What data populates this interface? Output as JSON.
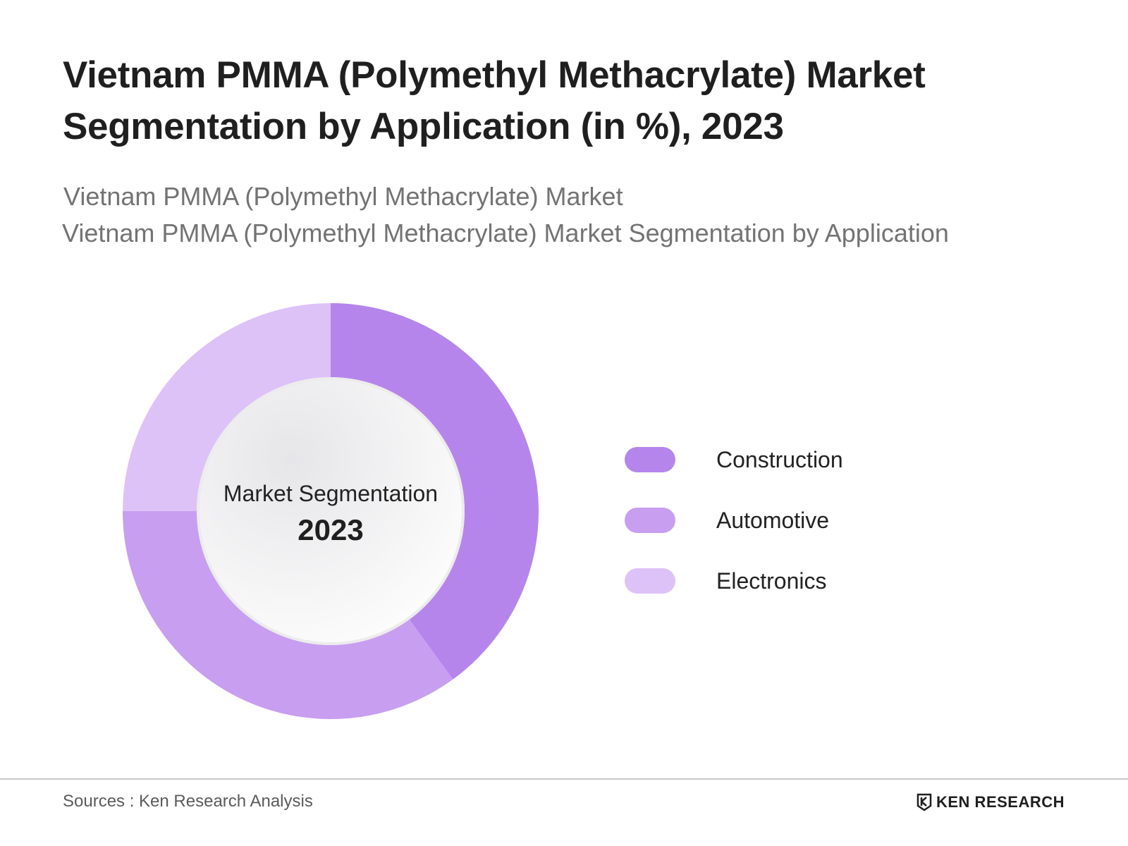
{
  "header": {
    "title": "Vietnam PMMA (Polymethyl Methacrylate) Market Segmentation by Application (in %), 2023",
    "subtitle": "Vietnam PMMA (Polymethyl Methacrylate) Market",
    "subtitle2": "Vietnam PMMA (Polymethyl Methacrylate) Market Segmentation by Application"
  },
  "chart_data": {
    "type": "pie",
    "variant": "donut",
    "center_text": "Market Segmentation",
    "center_year": "2023",
    "categories": [
      "Construction",
      "Automotive",
      "Electronics"
    ],
    "values": [
      40,
      35,
      25
    ],
    "colors": [
      "#b585ec",
      "#c89ef0",
      "#ddc2f8"
    ],
    "legend_position": "right"
  },
  "footer": {
    "source": "Sources : Ken Research Analysis",
    "logo_text": "KEN RESEARCH",
    "logo_icon": "ken-research-logo-icon"
  }
}
